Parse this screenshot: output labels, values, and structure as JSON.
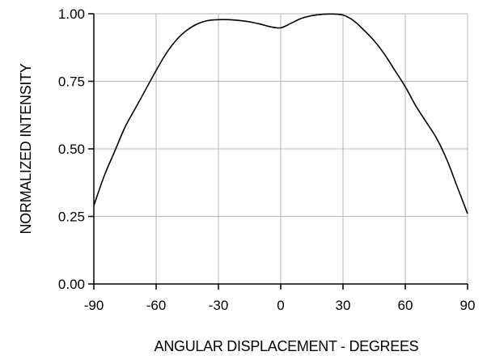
{
  "chart_data": {
    "type": "line",
    "title": "",
    "xlabel": "ANGULAR DISPLACEMENT - DEGREES",
    "ylabel": "NORMALIZED INTENSITY",
    "xlim": [
      -90,
      90
    ],
    "ylim": [
      0,
      1
    ],
    "xticks": [
      -90,
      -60,
      -30,
      0,
      30,
      60,
      90
    ],
    "xtick_labels": [
      "-90",
      "-60",
      "-30",
      "0",
      "30",
      "60",
      "90"
    ],
    "yticks": [
      0,
      0.25,
      0.5,
      0.75,
      1.0
    ],
    "ytick_labels": [
      "0.00",
      "0.25",
      "0.50",
      "0.75",
      "1.00"
    ],
    "grid": true,
    "series": [
      {
        "x": [
          -90,
          -85,
          -80,
          -75,
          -70,
          -65,
          -60,
          -55,
          -50,
          -45,
          -40,
          -35,
          -30,
          -25,
          -20,
          -15,
          -10,
          -5,
          0,
          5,
          10,
          15,
          20,
          25,
          30,
          35,
          40,
          45,
          50,
          55,
          60,
          65,
          70,
          75,
          80,
          85,
          90
        ],
        "y": [
          0.29,
          0.4,
          0.49,
          0.58,
          0.65,
          0.72,
          0.79,
          0.855,
          0.905,
          0.94,
          0.963,
          0.975,
          0.978,
          0.978,
          0.975,
          0.97,
          0.962,
          0.952,
          0.948,
          0.965,
          0.983,
          0.993,
          0.998,
          0.999,
          0.995,
          0.975,
          0.94,
          0.9,
          0.85,
          0.79,
          0.73,
          0.66,
          0.6,
          0.54,
          0.46,
          0.36,
          0.26
        ],
        "color": "#000000"
      }
    ]
  }
}
